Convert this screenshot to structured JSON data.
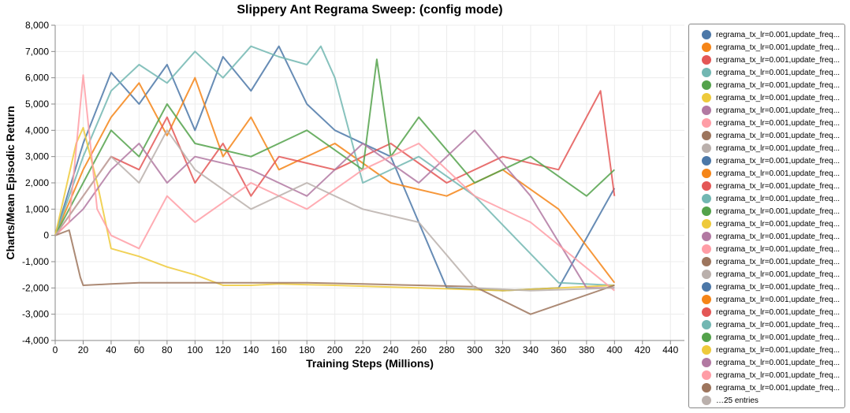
{
  "chart_data": {
    "type": "line",
    "title": "Slippery Ant Regrama Sweep: (config mode)",
    "xlabel": "Training Steps (Millions)",
    "ylabel": "Charts/Mean Episodic Return",
    "xlim": [
      0,
      450
    ],
    "ylim": [
      -4000,
      8000
    ],
    "x_ticks": [
      0,
      20,
      40,
      60,
      80,
      100,
      120,
      140,
      160,
      180,
      200,
      220,
      240,
      260,
      280,
      300,
      320,
      340,
      360,
      380,
      400,
      420,
      440
    ],
    "y_ticks": [
      -4000,
      -3000,
      -2000,
      -1000,
      0,
      1000,
      2000,
      3000,
      4000,
      5000,
      6000,
      7000,
      8000
    ],
    "y_tick_labels": [
      "-4,000",
      "-3,000",
      "-2,000",
      "-1,000",
      "0",
      "1,000",
      "2,000",
      "3,000",
      "4,000",
      "5,000",
      "6,000",
      "7,000",
      "8,000"
    ],
    "grid": true,
    "legend_position": "right",
    "series": [
      {
        "name": "regrama_tx_lr=0.001,update_freq...",
        "color": "#4c78a8",
        "x": [
          0,
          20,
          40,
          60,
          80,
          100,
          120,
          140,
          160,
          180,
          200,
          240,
          280,
          320,
          360,
          400
        ],
        "y": [
          0,
          3500,
          6200,
          5000,
          6500,
          4000,
          6800,
          5500,
          7200,
          5000,
          4000,
          3000,
          -2000,
          -2100,
          -2000,
          1800
        ]
      },
      {
        "name": "regrama_tx_lr=0.001,update_freq...",
        "color": "#f58518",
        "x": [
          0,
          20,
          40,
          60,
          80,
          100,
          120,
          140,
          160,
          200,
          240,
          280,
          320,
          360,
          400
        ],
        "y": [
          0,
          2500,
          4500,
          5800,
          3800,
          6000,
          3000,
          4500,
          2500,
          3500,
          2000,
          1500,
          2500,
          1000,
          -1800
        ]
      },
      {
        "name": "regrama_tx_lr=0.001,update_freq...",
        "color": "#e45756",
        "x": [
          0,
          20,
          40,
          60,
          80,
          100,
          120,
          140,
          160,
          200,
          240,
          280,
          320,
          360,
          390,
          400
        ],
        "y": [
          0,
          1500,
          3000,
          2500,
          4500,
          2000,
          3500,
          1500,
          3000,
          2500,
          3500,
          2000,
          3000,
          2500,
          5500,
          1500
        ]
      },
      {
        "name": "regrama_tx_lr=0.001,update_freq...",
        "color": "#72b7b2",
        "x": [
          0,
          20,
          40,
          60,
          80,
          100,
          120,
          140,
          160,
          180,
          190,
          200,
          220,
          260,
          300,
          360,
          400
        ],
        "y": [
          0,
          3000,
          5500,
          6500,
          5800,
          7000,
          6000,
          7200,
          6800,
          6500,
          7200,
          6000,
          2000,
          3000,
          1500,
          -1800,
          -1900
        ]
      },
      {
        "name": "regrama_tx_lr=0.001,update_freq...",
        "color": "#54a24b",
        "x": [
          0,
          20,
          40,
          60,
          80,
          100,
          140,
          180,
          220,
          230,
          240,
          260,
          300,
          340,
          380,
          400
        ],
        "y": [
          0,
          2000,
          4000,
          3000,
          5000,
          3500,
          3000,
          4000,
          2500,
          6700,
          3000,
          4500,
          2000,
          3000,
          1500,
          2500
        ]
      },
      {
        "name": "regrama_tx_lr=0.001,update_freq...",
        "color": "#eeca3b",
        "x": [
          0,
          15,
          20,
          30,
          40,
          60,
          80,
          100,
          120,
          140,
          160,
          200,
          260,
          320,
          400
        ],
        "y": [
          0,
          3500,
          4100,
          2000,
          -500,
          -800,
          -1200,
          -1500,
          -1900,
          -1900,
          -1850,
          -1900,
          -2000,
          -2100,
          -1900
        ]
      },
      {
        "name": "regrama_tx_lr=0.001,update_freq...",
        "color": "#b279a2",
        "x": [
          0,
          20,
          40,
          60,
          80,
          100,
          140,
          180,
          220,
          260,
          300,
          340,
          380,
          400
        ],
        "y": [
          0,
          1000,
          2500,
          3500,
          2000,
          3000,
          2500,
          1500,
          3500,
          2000,
          4000,
          1500,
          -2000,
          -2000
        ]
      },
      {
        "name": "regrama_tx_lr=0.001,update_freq...",
        "color": "#ff9da6",
        "x": [
          0,
          10,
          20,
          30,
          40,
          60,
          80,
          100,
          140,
          180,
          220,
          260,
          300,
          340,
          400
        ],
        "y": [
          0,
          500,
          6100,
          1000,
          0,
          -500,
          1500,
          500,
          2000,
          1000,
          2500,
          3500,
          1500,
          500,
          -2100
        ]
      },
      {
        "name": "regrama_tx_lr=0.001,update_freq...",
        "color": "#9d755d",
        "x": [
          0,
          10,
          18,
          20,
          40,
          60,
          80,
          100,
          140,
          180,
          220,
          260,
          300,
          340,
          400
        ],
        "y": [
          0,
          200,
          -1600,
          -1900,
          -1850,
          -1800,
          -1800,
          -1800,
          -1800,
          -1800,
          -1850,
          -1900,
          -1950,
          -3000,
          -1900
        ]
      },
      {
        "name": "regrama_tx_lr=0.001,update_freq...",
        "color": "#bab0ac",
        "x": [
          0,
          20,
          40,
          60,
          80,
          100,
          140,
          180,
          220,
          260,
          300,
          340,
          400
        ],
        "y": [
          0,
          1500,
          3000,
          2000,
          4000,
          2500,
          1000,
          2000,
          1000,
          500,
          -2000,
          -2100,
          -2000
        ]
      }
    ]
  },
  "legend": {
    "items": [
      {
        "label": "regrama_tx_lr=0.001,update_freq...",
        "color": "#4c78a8"
      },
      {
        "label": "regrama_tx_lr=0.001,update_freq...",
        "color": "#f58518"
      },
      {
        "label": "regrama_tx_lr=0.001,update_freq...",
        "color": "#e45756"
      },
      {
        "label": "regrama_tx_lr=0.001,update_freq...",
        "color": "#72b7b2"
      },
      {
        "label": "regrama_tx_lr=0.001,update_freq...",
        "color": "#54a24b"
      },
      {
        "label": "regrama_tx_lr=0.001,update_freq...",
        "color": "#eeca3b"
      },
      {
        "label": "regrama_tx_lr=0.001,update_freq...",
        "color": "#b279a2"
      },
      {
        "label": "regrama_tx_lr=0.001,update_freq...",
        "color": "#ff9da6"
      },
      {
        "label": "regrama_tx_lr=0.001,update_freq...",
        "color": "#9d755d"
      },
      {
        "label": "regrama_tx_lr=0.001,update_freq...",
        "color": "#bab0ac"
      },
      {
        "label": "regrama_tx_lr=0.001,update_freq...",
        "color": "#4c78a8"
      },
      {
        "label": "regrama_tx_lr=0.001,update_freq...",
        "color": "#f58518"
      },
      {
        "label": "regrama_tx_lr=0.001,update_freq...",
        "color": "#e45756"
      },
      {
        "label": "regrama_tx_lr=0.001,update_freq...",
        "color": "#72b7b2"
      },
      {
        "label": "regrama_tx_lr=0.001,update_freq...",
        "color": "#54a24b"
      },
      {
        "label": "regrama_tx_lr=0.001,update_freq...",
        "color": "#eeca3b"
      },
      {
        "label": "regrama_tx_lr=0.001,update_freq...",
        "color": "#b279a2"
      },
      {
        "label": "regrama_tx_lr=0.001,update_freq...",
        "color": "#ff9da6"
      },
      {
        "label": "regrama_tx_lr=0.001,update_freq...",
        "color": "#9d755d"
      },
      {
        "label": "regrama_tx_lr=0.001,update_freq...",
        "color": "#bab0ac"
      },
      {
        "label": "regrama_tx_lr=0.001,update_freq...",
        "color": "#4c78a8"
      },
      {
        "label": "regrama_tx_lr=0.001,update_freq...",
        "color": "#f58518"
      },
      {
        "label": "regrama_tx_lr=0.001,update_freq...",
        "color": "#e45756"
      },
      {
        "label": "regrama_tx_lr=0.001,update_freq...",
        "color": "#72b7b2"
      },
      {
        "label": "regrama_tx_lr=0.001,update_freq...",
        "color": "#54a24b"
      },
      {
        "label": "regrama_tx_lr=0.001,update_freq...",
        "color": "#eeca3b"
      },
      {
        "label": "regrama_tx_lr=0.001,update_freq...",
        "color": "#b279a2"
      },
      {
        "label": "regrama_tx_lr=0.001,update_freq...",
        "color": "#ff9da6"
      },
      {
        "label": "regrama_tx_lr=0.001,update_freq...",
        "color": "#9d755d"
      },
      {
        "label": "…25 entries",
        "color": "#bab0ac"
      }
    ]
  }
}
